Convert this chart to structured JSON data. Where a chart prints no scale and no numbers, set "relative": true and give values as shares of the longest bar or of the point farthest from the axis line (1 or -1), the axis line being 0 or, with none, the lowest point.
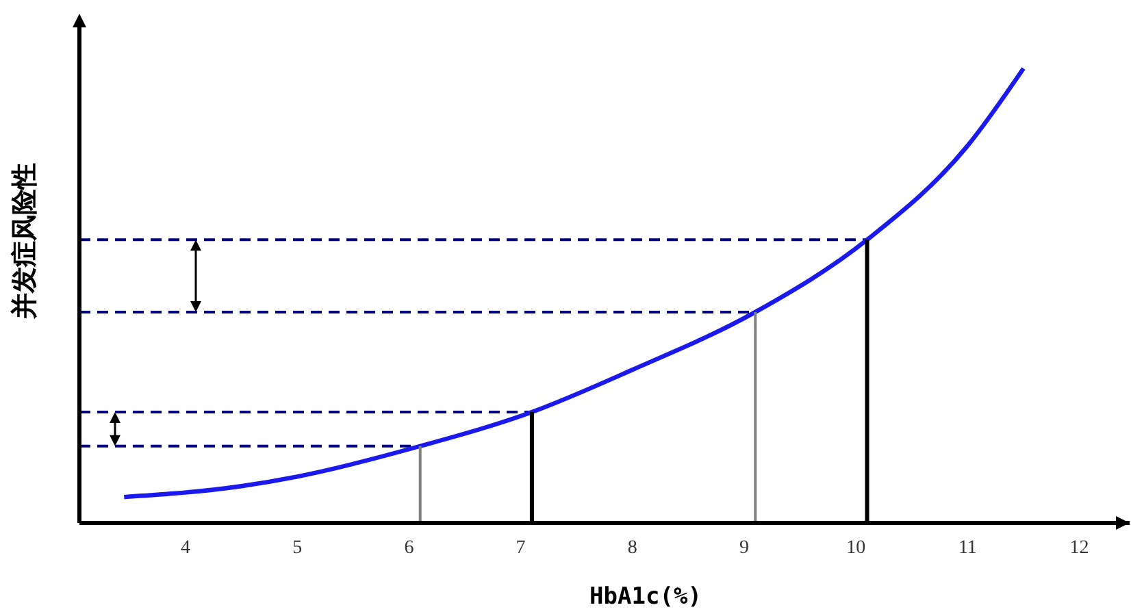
{
  "chart_data": {
    "type": "line",
    "relative": true,
    "xlabel": "HbA1c(%)",
    "ylabel": "并发症风险性",
    "xlim": [
      3.05,
      12.45
    ],
    "xticks": [
      4,
      5,
      6,
      7,
      8,
      9,
      10,
      11,
      12
    ],
    "series": [
      {
        "color": "#1a1aee",
        "x": [
          3.45,
          4.5,
          5.0,
          6.1,
          7.1,
          8.0,
          9.1,
          10.1,
          11.0,
          11.5
        ],
        "values": [
          0.057,
          0.081,
          0.102,
          0.169,
          0.244,
          0.337,
          0.464,
          0.623,
          0.83,
          1.0
        ]
      },
      {
        "color": "#808080",
        "x": [
          6.1,
          6.1
        ],
        "values": [
          0,
          0.169
        ]
      },
      {
        "color": "#000000",
        "x": [
          7.1,
          7.1
        ],
        "values": [
          0,
          0.244
        ]
      },
      {
        "color": "#808080",
        "x": [
          9.1,
          9.1
        ],
        "values": [
          0,
          0.464
        ]
      },
      {
        "color": "#000000",
        "x": [
          10.1,
          10.1
        ],
        "values": [
          0,
          0.623
        ]
      }
    ],
    "ref_lines": [
      {
        "axis": "y",
        "value": 0.169,
        "color": "#000080",
        "line_style": "dashed"
      },
      {
        "axis": "y",
        "value": 0.244,
        "color": "#000080",
        "line_style": "dashed"
      },
      {
        "axis": "y",
        "value": 0.464,
        "color": "#000080",
        "line_style": "dashed"
      },
      {
        "axis": "y",
        "value": 0.623,
        "color": "#000080",
        "line_style": "dashed"
      }
    ],
    "grid": false,
    "legend": false,
    "marker": "none",
    "line_style": "solid"
  }
}
